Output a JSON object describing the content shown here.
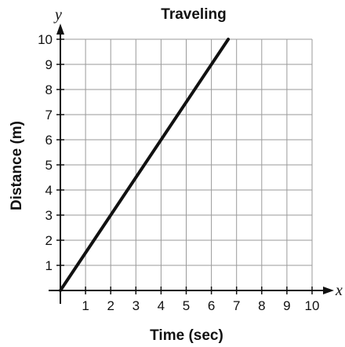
{
  "chart_data": {
    "type": "line",
    "title": "Traveling",
    "xlabel": "Time (sec)",
    "ylabel": "Distance (m)",
    "x_axis_var": "x",
    "y_axis_var": "y",
    "xlim": [
      0,
      10
    ],
    "ylim": [
      0,
      10
    ],
    "x_ticks": [
      "1",
      "2",
      "3",
      "4",
      "5",
      "6",
      "7",
      "8",
      "9",
      "10"
    ],
    "y_ticks": [
      "1",
      "2",
      "3",
      "4",
      "5",
      "6",
      "7",
      "8",
      "9",
      "10"
    ],
    "grid": true,
    "series": [
      {
        "x": [
          0,
          6.67
        ],
        "y": [
          0,
          10
        ]
      }
    ],
    "colors": {
      "line": "#111111",
      "grid": "#9a9a9a",
      "axis": "#111111"
    }
  }
}
